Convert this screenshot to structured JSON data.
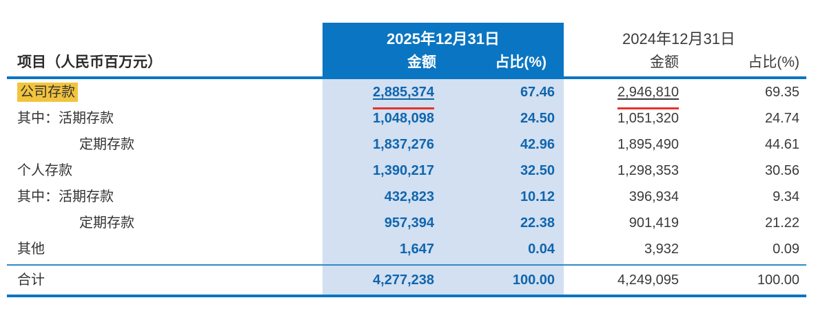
{
  "colors": {
    "header_blue": "#0a75c2",
    "band_blue": "#d2e0f1",
    "number_blue": "#1065ae",
    "text_dark": "#3a3a3a",
    "mark_red": "#e8322a",
    "highlight_yellow": "#f2c43d"
  },
  "table": {
    "header": {
      "item_label": "项目（人民币百万元）",
      "period_2025": {
        "date": "2025年12月31日",
        "amount_label": "金额",
        "pct_label": "占比(%)"
      },
      "period_2024": {
        "date": "2024年12月31日",
        "amount_label": "金额",
        "pct_label": "占比(%)"
      }
    },
    "rows": [
      {
        "label": "公司存款",
        "highlight": true,
        "marked": true,
        "a2025": "2,885,374",
        "p2025": "67.46",
        "a2024": "2,946,810",
        "p2024": "69.35"
      },
      {
        "label": "其中：活期存款",
        "a2025": "1,048,098",
        "p2025": "24.50",
        "a2024": "1,051,320",
        "p2024": "24.74"
      },
      {
        "label": "定期存款",
        "indent": true,
        "a2025": "1,837,276",
        "p2025": "42.96",
        "a2024": "1,895,490",
        "p2024": "44.61"
      },
      {
        "label": "个人存款",
        "a2025": "1,390,217",
        "p2025": "32.50",
        "a2024": "1,298,353",
        "p2024": "30.56"
      },
      {
        "label": "其中：活期存款",
        "a2025": "432,823",
        "p2025": "10.12",
        "a2024": "396,934",
        "p2024": "9.34"
      },
      {
        "label": "定期存款",
        "indent": true,
        "a2025": "957,394",
        "p2025": "22.38",
        "a2024": "901,419",
        "p2024": "21.22"
      },
      {
        "label": "其他",
        "a2025": "1,647",
        "p2025": "0.04",
        "a2024": "3,932",
        "p2024": "0.09"
      }
    ],
    "total_row": {
      "label": "合计",
      "a2025": "4,277,238",
      "p2025": "100.00",
      "a2024": "4,249,095",
      "p2024": "100.00"
    }
  }
}
